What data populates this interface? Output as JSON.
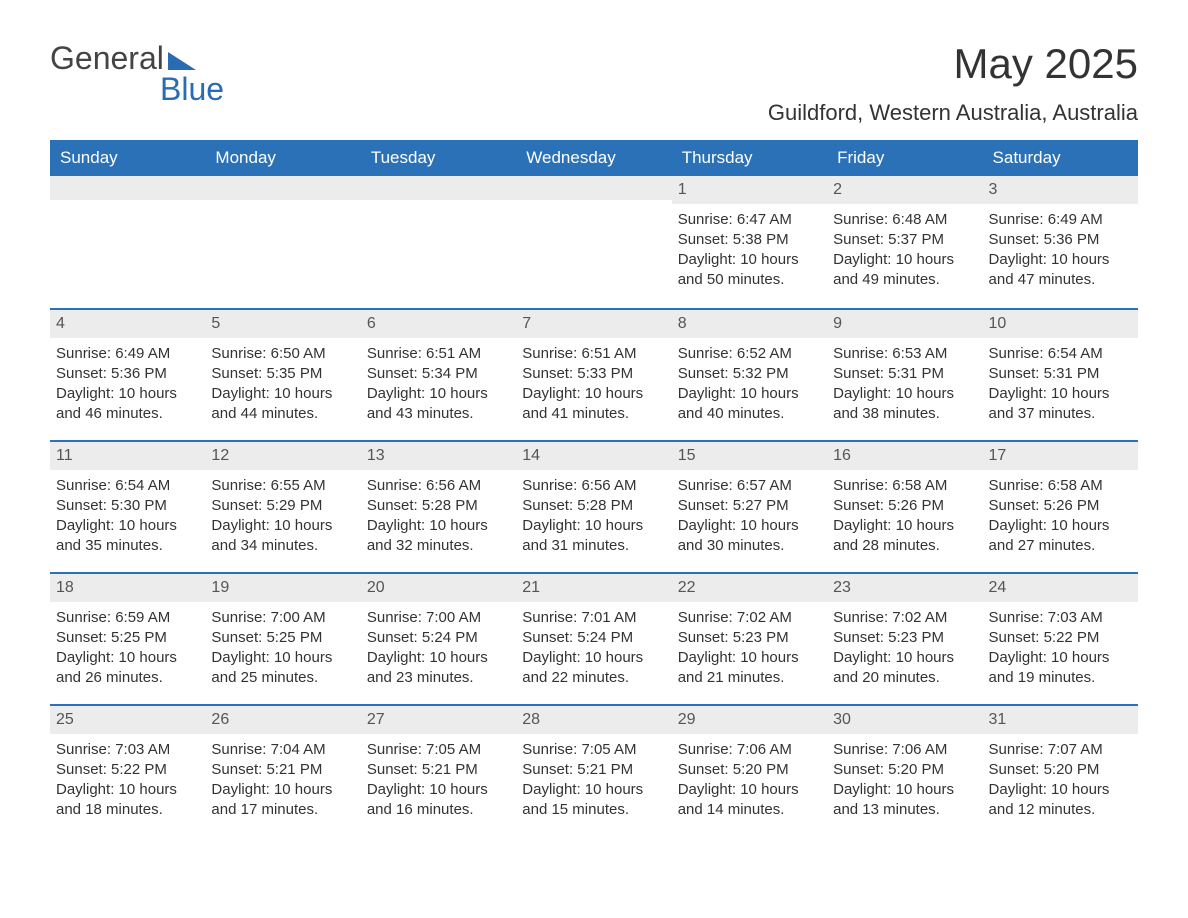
{
  "logo": {
    "text1": "General",
    "text2": "Blue"
  },
  "title": "May 2025",
  "location": "Guildford, Western Australia, Australia",
  "header_bg": "#2a71b8",
  "header_text_color": "#ffffff",
  "rule_color": "#2a71b8",
  "daynum_bg": "#ececec",
  "body_text_color": "#333333",
  "page_bg": "#ffffff",
  "title_fontsize": 42,
  "location_fontsize": 22,
  "weekday_fontsize": 17,
  "body_fontsize": 15,
  "weekdays": [
    "Sunday",
    "Monday",
    "Tuesday",
    "Wednesday",
    "Thursday",
    "Friday",
    "Saturday"
  ],
  "weeks": [
    [
      {
        "day": "",
        "sunrise": "",
        "sunset": "",
        "daylight": ""
      },
      {
        "day": "",
        "sunrise": "",
        "sunset": "",
        "daylight": ""
      },
      {
        "day": "",
        "sunrise": "",
        "sunset": "",
        "daylight": ""
      },
      {
        "day": "",
        "sunrise": "",
        "sunset": "",
        "daylight": ""
      },
      {
        "day": "1",
        "sunrise": "Sunrise: 6:47 AM",
        "sunset": "Sunset: 5:38 PM",
        "daylight": "Daylight: 10 hours and 50 minutes."
      },
      {
        "day": "2",
        "sunrise": "Sunrise: 6:48 AM",
        "sunset": "Sunset: 5:37 PM",
        "daylight": "Daylight: 10 hours and 49 minutes."
      },
      {
        "day": "3",
        "sunrise": "Sunrise: 6:49 AM",
        "sunset": "Sunset: 5:36 PM",
        "daylight": "Daylight: 10 hours and 47 minutes."
      }
    ],
    [
      {
        "day": "4",
        "sunrise": "Sunrise: 6:49 AM",
        "sunset": "Sunset: 5:36 PM",
        "daylight": "Daylight: 10 hours and 46 minutes."
      },
      {
        "day": "5",
        "sunrise": "Sunrise: 6:50 AM",
        "sunset": "Sunset: 5:35 PM",
        "daylight": "Daylight: 10 hours and 44 minutes."
      },
      {
        "day": "6",
        "sunrise": "Sunrise: 6:51 AM",
        "sunset": "Sunset: 5:34 PM",
        "daylight": "Daylight: 10 hours and 43 minutes."
      },
      {
        "day": "7",
        "sunrise": "Sunrise: 6:51 AM",
        "sunset": "Sunset: 5:33 PM",
        "daylight": "Daylight: 10 hours and 41 minutes."
      },
      {
        "day": "8",
        "sunrise": "Sunrise: 6:52 AM",
        "sunset": "Sunset: 5:32 PM",
        "daylight": "Daylight: 10 hours and 40 minutes."
      },
      {
        "day": "9",
        "sunrise": "Sunrise: 6:53 AM",
        "sunset": "Sunset: 5:31 PM",
        "daylight": "Daylight: 10 hours and 38 minutes."
      },
      {
        "day": "10",
        "sunrise": "Sunrise: 6:54 AM",
        "sunset": "Sunset: 5:31 PM",
        "daylight": "Daylight: 10 hours and 37 minutes."
      }
    ],
    [
      {
        "day": "11",
        "sunrise": "Sunrise: 6:54 AM",
        "sunset": "Sunset: 5:30 PM",
        "daylight": "Daylight: 10 hours and 35 minutes."
      },
      {
        "day": "12",
        "sunrise": "Sunrise: 6:55 AM",
        "sunset": "Sunset: 5:29 PM",
        "daylight": "Daylight: 10 hours and 34 minutes."
      },
      {
        "day": "13",
        "sunrise": "Sunrise: 6:56 AM",
        "sunset": "Sunset: 5:28 PM",
        "daylight": "Daylight: 10 hours and 32 minutes."
      },
      {
        "day": "14",
        "sunrise": "Sunrise: 6:56 AM",
        "sunset": "Sunset: 5:28 PM",
        "daylight": "Daylight: 10 hours and 31 minutes."
      },
      {
        "day": "15",
        "sunrise": "Sunrise: 6:57 AM",
        "sunset": "Sunset: 5:27 PM",
        "daylight": "Daylight: 10 hours and 30 minutes."
      },
      {
        "day": "16",
        "sunrise": "Sunrise: 6:58 AM",
        "sunset": "Sunset: 5:26 PM",
        "daylight": "Daylight: 10 hours and 28 minutes."
      },
      {
        "day": "17",
        "sunrise": "Sunrise: 6:58 AM",
        "sunset": "Sunset: 5:26 PM",
        "daylight": "Daylight: 10 hours and 27 minutes."
      }
    ],
    [
      {
        "day": "18",
        "sunrise": "Sunrise: 6:59 AM",
        "sunset": "Sunset: 5:25 PM",
        "daylight": "Daylight: 10 hours and 26 minutes."
      },
      {
        "day": "19",
        "sunrise": "Sunrise: 7:00 AM",
        "sunset": "Sunset: 5:25 PM",
        "daylight": "Daylight: 10 hours and 25 minutes."
      },
      {
        "day": "20",
        "sunrise": "Sunrise: 7:00 AM",
        "sunset": "Sunset: 5:24 PM",
        "daylight": "Daylight: 10 hours and 23 minutes."
      },
      {
        "day": "21",
        "sunrise": "Sunrise: 7:01 AM",
        "sunset": "Sunset: 5:24 PM",
        "daylight": "Daylight: 10 hours and 22 minutes."
      },
      {
        "day": "22",
        "sunrise": "Sunrise: 7:02 AM",
        "sunset": "Sunset: 5:23 PM",
        "daylight": "Daylight: 10 hours and 21 minutes."
      },
      {
        "day": "23",
        "sunrise": "Sunrise: 7:02 AM",
        "sunset": "Sunset: 5:23 PM",
        "daylight": "Daylight: 10 hours and 20 minutes."
      },
      {
        "day": "24",
        "sunrise": "Sunrise: 7:03 AM",
        "sunset": "Sunset: 5:22 PM",
        "daylight": "Daylight: 10 hours and 19 minutes."
      }
    ],
    [
      {
        "day": "25",
        "sunrise": "Sunrise: 7:03 AM",
        "sunset": "Sunset: 5:22 PM",
        "daylight": "Daylight: 10 hours and 18 minutes."
      },
      {
        "day": "26",
        "sunrise": "Sunrise: 7:04 AM",
        "sunset": "Sunset: 5:21 PM",
        "daylight": "Daylight: 10 hours and 17 minutes."
      },
      {
        "day": "27",
        "sunrise": "Sunrise: 7:05 AM",
        "sunset": "Sunset: 5:21 PM",
        "daylight": "Daylight: 10 hours and 16 minutes."
      },
      {
        "day": "28",
        "sunrise": "Sunrise: 7:05 AM",
        "sunset": "Sunset: 5:21 PM",
        "daylight": "Daylight: 10 hours and 15 minutes."
      },
      {
        "day": "29",
        "sunrise": "Sunrise: 7:06 AM",
        "sunset": "Sunset: 5:20 PM",
        "daylight": "Daylight: 10 hours and 14 minutes."
      },
      {
        "day": "30",
        "sunrise": "Sunrise: 7:06 AM",
        "sunset": "Sunset: 5:20 PM",
        "daylight": "Daylight: 10 hours and 13 minutes."
      },
      {
        "day": "31",
        "sunrise": "Sunrise: 7:07 AM",
        "sunset": "Sunset: 5:20 PM",
        "daylight": "Daylight: 10 hours and 12 minutes."
      }
    ]
  ]
}
